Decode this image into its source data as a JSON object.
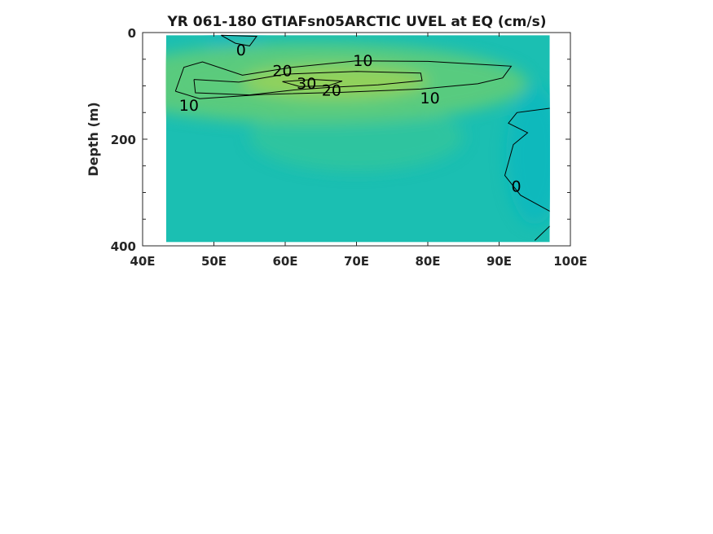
{
  "chart_data": {
    "type": "heatmap",
    "title": "YR 061-180 GTIAFsn05ARCTIC UVEL at EQ (cm/s)",
    "xlabel": "",
    "ylabel": "Depth (m)",
    "xlim": [
      40,
      100
    ],
    "ylim": [
      0,
      400
    ],
    "y_reversed": true,
    "x_ticks": [
      {
        "value": 40,
        "label": "40E"
      },
      {
        "value": 50,
        "label": "50E"
      },
      {
        "value": 60,
        "label": "60E"
      },
      {
        "value": 70,
        "label": "70E"
      },
      {
        "value": 80,
        "label": "80E"
      },
      {
        "value": 90,
        "label": "90E"
      },
      {
        "value": 100,
        "label": "100E"
      }
    ],
    "y_ticks": [
      {
        "value": 0,
        "label": "0"
      },
      {
        "value": 200,
        "label": "200"
      },
      {
        "value": 400,
        "label": "400"
      }
    ],
    "data_extent": {
      "x": [
        43.3,
        97.1
      ],
      "y": [
        5,
        393
      ]
    },
    "contour_levels": [
      0,
      10,
      20,
      30
    ],
    "contours": [
      {
        "level": 10,
        "points": [
          [
            44.6,
            110
          ],
          [
            45.8,
            65
          ],
          [
            48.4,
            55
          ],
          [
            54,
            80
          ],
          [
            61,
            65
          ],
          [
            70,
            53
          ],
          [
            80,
            54
          ],
          [
            91.7,
            63
          ],
          [
            90.5,
            85
          ],
          [
            87,
            96
          ],
          [
            79,
            106
          ],
          [
            68,
            112
          ],
          [
            57,
            116
          ],
          [
            48,
            124
          ],
          [
            44.6,
            110
          ]
        ]
      },
      {
        "level": 20,
        "points": [
          [
            47.2,
            88
          ],
          [
            53.5,
            93
          ],
          [
            60,
            78
          ],
          [
            70,
            73
          ],
          [
            79,
            76
          ],
          [
            79.2,
            90
          ],
          [
            73,
            98
          ],
          [
            66,
            103
          ],
          [
            61,
            108
          ],
          [
            55,
            117
          ],
          [
            47.4,
            113
          ],
          [
            47.2,
            88
          ]
        ]
      },
      {
        "level": 30,
        "points": [
          [
            59.6,
            92
          ],
          [
            64,
            88
          ],
          [
            68,
            91
          ],
          [
            66,
            100
          ],
          [
            62,
            101
          ],
          [
            59.6,
            92
          ]
        ]
      },
      {
        "level": 0,
        "points": [
          [
            51,
            5
          ],
          [
            53,
            20
          ],
          [
            55,
            25
          ],
          [
            56,
            7
          ],
          [
            51,
            5
          ]
        ]
      },
      {
        "level": 0,
        "points": [
          [
            97.1,
            142
          ],
          [
            92.5,
            150
          ],
          [
            91.3,
            170
          ],
          [
            94,
            188
          ],
          [
            92,
            210
          ],
          [
            90.8,
            268
          ],
          [
            93,
            305
          ],
          [
            97.1,
            335
          ]
        ]
      },
      {
        "level": 0,
        "points": [
          [
            97.1,
            363
          ],
          [
            95,
            390
          ]
        ]
      }
    ],
    "contour_labels": [
      {
        "value": 0,
        "text": "0",
        "x": 53.8,
        "y": 32
      },
      {
        "value": 20,
        "text": "20",
        "x": 59.6,
        "y": 71
      },
      {
        "value": 10,
        "text": "10",
        "x": 70.9,
        "y": 52
      },
      {
        "value": 30,
        "text": "30",
        "x": 63.0,
        "y": 95
      },
      {
        "value": 20,
        "text": "20",
        "x": 66.5,
        "y": 108
      },
      {
        "value": 10,
        "text": "10",
        "x": 46.5,
        "y": 136
      },
      {
        "value": 10,
        "text": "10",
        "x": 80.3,
        "y": 122
      },
      {
        "value": 0,
        "text": "0",
        "x": 92.4,
        "y": 288
      }
    ],
    "field_blobs": [
      {
        "x": 67,
        "y": 92,
        "rx": 13,
        "ry": 32,
        "value": 36
      },
      {
        "x": 60,
        "y": 95,
        "rx": 16,
        "ry": 42,
        "value": 26
      },
      {
        "x": 64,
        "y": 95,
        "rx": 30,
        "ry": 75,
        "value": 14
      },
      {
        "x": 70,
        "y": 195,
        "rx": 15,
        "ry": 65,
        "value": 9
      },
      {
        "x": 53,
        "y": 22,
        "rx": 4,
        "ry": 30,
        "value": -3
      },
      {
        "x": 95,
        "y": 230,
        "rx": 4,
        "ry": 130,
        "value": -3
      }
    ],
    "grid": false,
    "legend": "none"
  },
  "colors": {
    "background_field": "#1bbfb2",
    "weak_positive": "#2fc49e",
    "moderate_positive": "#5dcb7c",
    "strong_positive": "#94d15a",
    "negative": "#12b8bd",
    "contour_line": "#000000",
    "axis": "#262626"
  }
}
